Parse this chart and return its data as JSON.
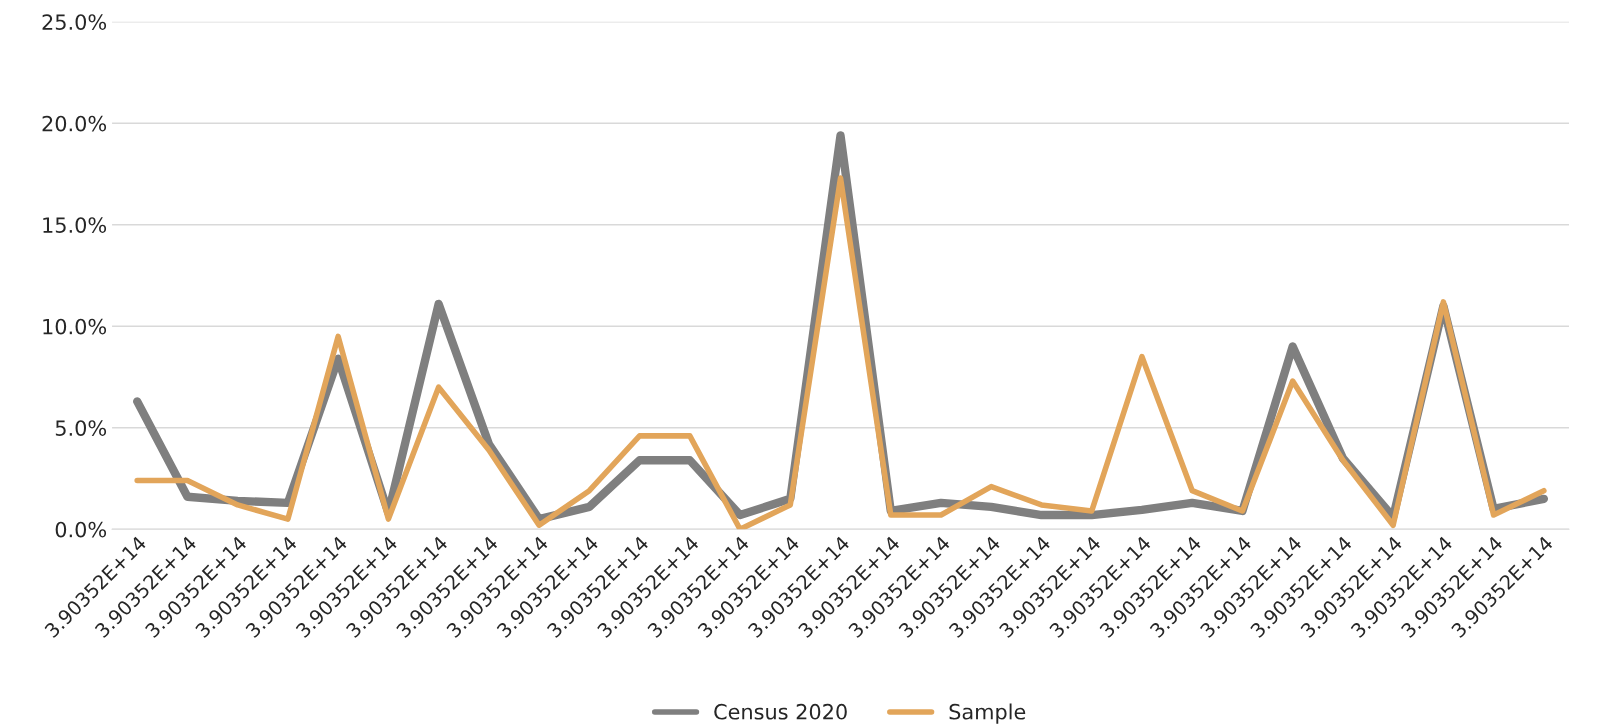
{
  "chart_data": {
    "type": "line",
    "categories": [
      "3.90352E+14",
      "3.90352E+14",
      "3.90352E+14",
      "3.90352E+14",
      "3.90352E+14",
      "3.90352E+14",
      "3.90352E+14",
      "3.90352E+14",
      "3.90352E+14",
      "3.90352E+14",
      "3.90352E+14",
      "3.90352E+14",
      "3.90352E+14",
      "3.90352E+14",
      "3.90352E+14",
      "3.90352E+14",
      "3.90352E+14",
      "3.90352E+14",
      "3.90352E+14",
      "3.90352E+14",
      "3.90352E+14",
      "3.90352E+14",
      "3.90352E+14",
      "3.90352E+14",
      "3.90352E+14",
      "3.90352E+14",
      "3.90352E+14",
      "3.90352E+14",
      "3.90352E+14"
    ],
    "series": [
      {
        "name": "Census 2020",
        "color": "#7f7f7f",
        "values": [
          6.3,
          1.6,
          1.4,
          1.3,
          8.4,
          0.8,
          11.1,
          4.2,
          0.5,
          1.1,
          3.4,
          3.4,
          0.7,
          1.5,
          19.4,
          0.9,
          1.3,
          1.1,
          0.7,
          0.7,
          0.95,
          1.3,
          0.9,
          9.0,
          3.5,
          0.6,
          11.0,
          1.0,
          1.5
        ]
      },
      {
        "name": "Sample",
        "color": "#e2a55a",
        "values": [
          2.4,
          2.4,
          1.2,
          0.5,
          9.5,
          0.5,
          7.0,
          3.9,
          0.2,
          1.9,
          4.6,
          4.6,
          0.0,
          1.2,
          17.3,
          0.7,
          0.7,
          2.1,
          1.2,
          0.9,
          8.5,
          1.9,
          0.9,
          7.3,
          3.4,
          0.2,
          11.2,
          0.7,
          1.9
        ]
      }
    ],
    "ylim": [
      0,
      25
    ],
    "yticks": [
      {
        "value": 0,
        "label": "0.0%"
      },
      {
        "value": 5,
        "label": "5.0%"
      },
      {
        "value": 10,
        "label": "10.0%"
      },
      {
        "value": 15,
        "label": "15.0%"
      },
      {
        "value": 20,
        "label": "20.0%"
      },
      {
        "value": 25,
        "label": "25.0%"
      }
    ],
    "grid": "y",
    "legend": "bottom",
    "line_style": "solid"
  }
}
